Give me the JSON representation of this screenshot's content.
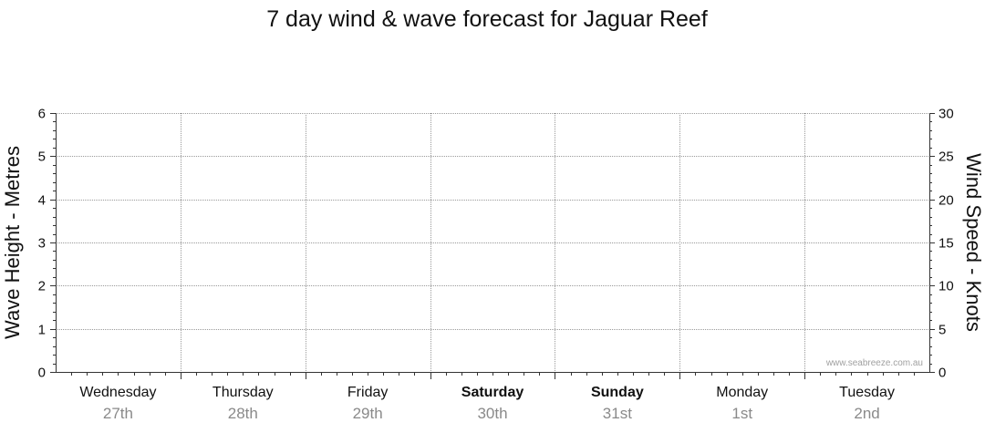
{
  "chart_data": {
    "type": "line",
    "title": "7 day wind & wave forecast for Jaguar Reef",
    "ylabel_left": "Wave Height - Metres",
    "ylabel_right": "Wind Speed - Knots",
    "ylim_left": [
      0,
      6
    ],
    "ylim_right": [
      0,
      30
    ],
    "yticks_left": [
      "0",
      "1",
      "2",
      "3",
      "4",
      "5",
      "6"
    ],
    "yticks_right": [
      "0",
      "5",
      "10",
      "15",
      "20",
      "25",
      "30"
    ],
    "grid": true,
    "days": [
      {
        "name": "Wednesday",
        "date": "27th",
        "bold": false
      },
      {
        "name": "Thursday",
        "date": "28th",
        "bold": false
      },
      {
        "name": "Friday",
        "date": "29th",
        "bold": false
      },
      {
        "name": "Saturday",
        "date": "30th",
        "bold": true
      },
      {
        "name": "Sunday",
        "date": "31st",
        "bold": true
      },
      {
        "name": "Monday",
        "date": "1st",
        "bold": false
      },
      {
        "name": "Tuesday",
        "date": "2nd",
        "bold": false
      }
    ],
    "series": [],
    "watermark": "www.seabreeze.com.au"
  }
}
